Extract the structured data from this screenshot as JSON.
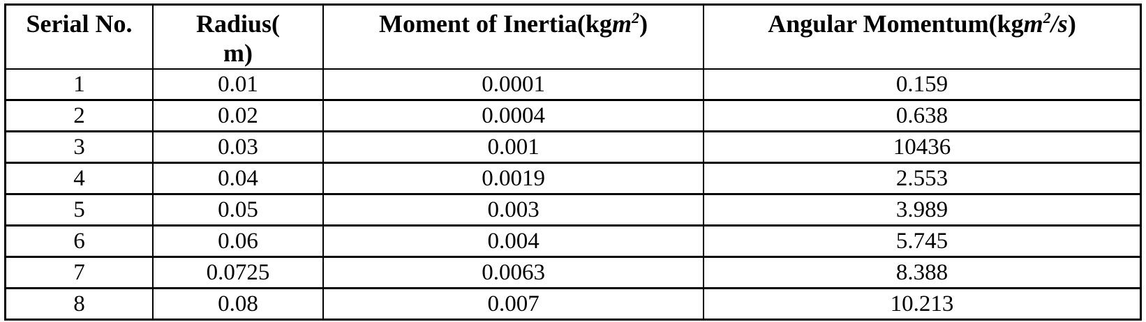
{
  "page": {
    "background_color": "#ffffff",
    "border_color": "#000000",
    "text_color": "#000000"
  },
  "table": {
    "headers": {
      "serial": {
        "label": "Serial No."
      },
      "radius": {
        "label": "Radius(\nm)"
      },
      "inertia": {
        "pre": "Moment of Inertia(kg",
        "var": "m",
        "sup": "2",
        "post": ")"
      },
      "momentum": {
        "pre": "Angular Momentum(kg",
        "var": "m",
        "sup": "2",
        "mid": "/s",
        "post": ")"
      }
    },
    "rows": [
      {
        "serial": "1",
        "radius": "0.01",
        "inertia": "0.0001",
        "momentum": "0.159"
      },
      {
        "serial": "2",
        "radius": "0.02",
        "inertia": "0.0004",
        "momentum": "0.638"
      },
      {
        "serial": "3",
        "radius": "0.03",
        "inertia": "0.001",
        "momentum": "10436"
      },
      {
        "serial": "4",
        "radius": "0.04",
        "inertia": "0.0019",
        "momentum": "2.553"
      },
      {
        "serial": "5",
        "radius": "0.05",
        "inertia": "0.003",
        "momentum": "3.989"
      },
      {
        "serial": "6",
        "radius": "0.06",
        "inertia": "0.004",
        "momentum": "5.745"
      },
      {
        "serial": "7",
        "radius": "0.0725",
        "inertia": "0.0063",
        "momentum": "8.388"
      },
      {
        "serial": "8",
        "radius": "0.08",
        "inertia": "0.007",
        "momentum": "10.213"
      }
    ]
  }
}
